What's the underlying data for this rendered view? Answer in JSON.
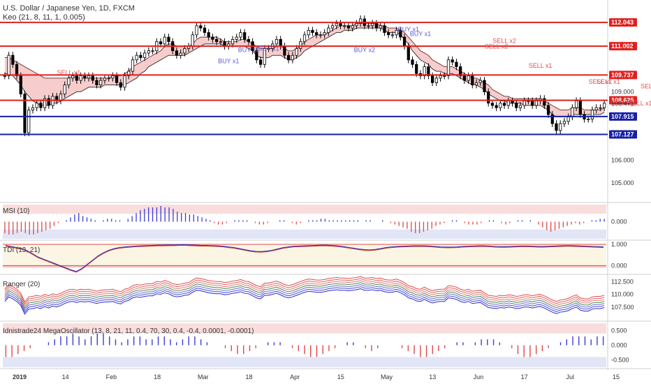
{
  "header": {
    "symbol": "U.S. Dollar / Japanese Yen, 1D, FXCM",
    "indicator": "Keo (21, 8, 11, 1, 0.005)"
  },
  "panes": {
    "msi": "MSI (10)",
    "tdi": "TDI (13, 21)",
    "ranger": "Ranger (20)",
    "mega": "Idnistrade24 MegaOscillator (13, 8, 21, 11, 0.4, 70, 30, 0.4, -0.4, 0.0001, -0.0001)"
  },
  "colors": {
    "resistance": "#e0201f",
    "support": "#1520a6",
    "bull_body": "#ffffff",
    "bear_body": "#000000",
    "band_red": "#f5c6c6",
    "band_green": "#c9e9c9",
    "band_blue": "#cdd4f0",
    "buy": "#5a5ad8",
    "sell": "#e05050"
  },
  "chart_data": [
    {
      "type": "candlestick",
      "title": "U.S. Dollar / Japanese Yen, 1D, FXCM",
      "ylim": [
        104.2,
        112.6
      ],
      "y_ticks": [
        105.0,
        106.0,
        107.0,
        108.0,
        109.0,
        110.0,
        111.0,
        112.0
      ],
      "x_tick_labels": [
        "2019",
        "14",
        "Feb",
        "18",
        "Mar",
        "18",
        "Apr",
        "15",
        "May",
        "13",
        "Jun",
        "17",
        "Jul",
        "15"
      ],
      "levels": [
        {
          "value": 112.043,
          "label": "112.043",
          "kind": "resistance"
        },
        {
          "value": 111.002,
          "label": "111.002",
          "kind": "resistance"
        },
        {
          "value": 109.737,
          "label": "109.737",
          "kind": "resistance"
        },
        {
          "value": 108.625,
          "label": "108.625",
          "kind": "resistance"
        },
        {
          "value": 107.915,
          "label": "107.915",
          "kind": "support"
        },
        {
          "value": 107.127,
          "label": "107.127",
          "kind": "support"
        }
      ],
      "last_price": {
        "value": 108.471,
        "label": "108.471"
      },
      "closes": [
        109.7,
        110.6,
        110.2,
        109.7,
        108.9,
        107.2,
        108.2,
        108.3,
        108.5,
        108.3,
        108.7,
        108.4,
        108.8,
        108.6,
        108.9,
        109.3,
        109.6,
        109.7,
        109.5,
        109.7,
        109.6,
        109.7,
        109.5,
        109.3,
        109.5,
        109.6,
        109.6,
        109.7,
        109.4,
        109.2,
        109.7,
        109.9,
        110.4,
        110.6,
        110.5,
        110.7,
        110.8,
        110.8,
        111.2,
        111.1,
        111.4,
        111.2,
        110.8,
        110.6,
        110.7,
        110.9,
        111.0,
        111.5,
        111.9,
        111.8,
        111.6,
        111.4,
        111.3,
        111.2,
        111.2,
        111.0,
        111.1,
        111.3,
        111.4,
        111.6,
        111.3,
        111.2,
        110.8,
        110.4,
        110.2,
        110.9,
        110.9,
        111.1,
        111.3,
        111.0,
        110.6,
        110.4,
        110.6,
        110.9,
        111.2,
        111.5,
        111.7,
        111.6,
        111.5,
        111.5,
        111.6,
        111.8,
        111.9,
        112.0,
        111.9,
        111.9,
        111.8,
        111.9,
        112.0,
        112.2,
        111.9,
        111.9,
        112.0,
        111.8,
        111.9,
        111.6,
        111.5,
        111.5,
        111.7,
        111.4,
        111.0,
        110.4,
        110.2,
        109.8,
        109.7,
        110.1,
        109.7,
        109.4,
        109.6,
        109.7,
        109.7,
        110.4,
        110.3,
        110.1,
        109.7,
        109.5,
        109.7,
        109.3,
        109.4,
        109.5,
        109.0,
        108.5,
        108.4,
        108.3,
        108.5,
        108.4,
        108.6,
        108.5,
        108.3,
        108.4,
        108.6,
        108.6,
        108.4,
        108.6,
        108.7,
        108.4,
        108.0,
        107.6,
        107.3,
        107.6,
        107.7,
        107.9,
        108.3,
        108.6,
        108.0,
        107.8,
        107.8,
        108.2,
        108.3,
        108.3,
        108.5
      ],
      "keo_upper": [
        110.5,
        110.5,
        110.4,
        110.3,
        110.2,
        110.1,
        110.0,
        109.9,
        109.8,
        109.7,
        109.6,
        109.6,
        109.6,
        109.6,
        109.6,
        109.6,
        109.6,
        109.7,
        109.6,
        109.6,
        109.6,
        109.6,
        109.6,
        109.6,
        109.6,
        109.6,
        109.6,
        109.7,
        109.7,
        109.7,
        109.8,
        109.9,
        110.1,
        110.2,
        110.3,
        110.4,
        110.5,
        110.6,
        110.7,
        110.8,
        111.0,
        111.1,
        111.1,
        111.0,
        111.0,
        111.0,
        111.0,
        111.1,
        111.3,
        111.4,
        111.4,
        111.4,
        111.4,
        111.4,
        111.3,
        111.2,
        111.2,
        111.2,
        111.2,
        111.3,
        111.3,
        111.2,
        111.1,
        111.0,
        110.9,
        110.9,
        110.9,
        110.9,
        111.0,
        111.0,
        110.9,
        110.8,
        110.8,
        110.9,
        111.0,
        111.2,
        111.3,
        111.4,
        111.5,
        111.5,
        111.5,
        111.6,
        111.7,
        111.8,
        111.9,
        111.9,
        111.9,
        111.9,
        112.0,
        112.0,
        112.0,
        112.0,
        112.0,
        112.0,
        111.9,
        111.9,
        111.8,
        111.8,
        111.8,
        111.7,
        111.6,
        111.4,
        111.2,
        111.0,
        110.8,
        110.7,
        110.6,
        110.4,
        110.3,
        110.2,
        110.1,
        110.1,
        110.1,
        110.0,
        109.9,
        109.8,
        109.7,
        109.6,
        109.6,
        109.5,
        109.4,
        109.3,
        109.1,
        109.0,
        108.9,
        108.8,
        108.8,
        108.7,
        108.7,
        108.7,
        108.7,
        108.7,
        108.7,
        108.7,
        108.7,
        108.6,
        108.5,
        108.4,
        108.3,
        108.2,
        108.2,
        108.2,
        108.3,
        108.3,
        108.3,
        108.2,
        108.2,
        108.2,
        108.2,
        108.2,
        108.3
      ],
      "keo_lower": [
        109.8,
        109.8,
        109.7,
        109.5,
        109.3,
        109.0,
        108.8,
        108.6,
        108.5,
        108.4,
        108.4,
        108.4,
        108.5,
        108.5,
        108.6,
        108.7,
        108.8,
        108.9,
        109.0,
        109.0,
        109.1,
        109.2,
        109.2,
        109.2,
        109.2,
        109.3,
        109.3,
        109.3,
        109.3,
        109.3,
        109.3,
        109.4,
        109.5,
        109.6,
        109.8,
        109.9,
        110.1,
        110.2,
        110.3,
        110.4,
        110.5,
        110.6,
        110.6,
        110.6,
        110.6,
        110.6,
        110.7,
        110.8,
        110.9,
        111.0,
        111.1,
        111.1,
        111.1,
        111.1,
        111.1,
        111.0,
        111.0,
        111.0,
        111.0,
        111.0,
        111.0,
        110.9,
        110.8,
        110.6,
        110.5,
        110.5,
        110.5,
        110.6,
        110.6,
        110.6,
        110.5,
        110.4,
        110.4,
        110.5,
        110.6,
        110.8,
        110.9,
        111.0,
        111.1,
        111.2,
        111.3,
        111.4,
        111.5,
        111.6,
        111.6,
        111.7,
        111.7,
        111.7,
        111.8,
        111.8,
        111.8,
        111.8,
        111.8,
        111.8,
        111.8,
        111.7,
        111.6,
        111.6,
        111.6,
        111.5,
        111.3,
        111.1,
        110.8,
        110.6,
        110.4,
        110.3,
        110.2,
        110.0,
        109.9,
        109.9,
        109.8,
        109.8,
        109.8,
        109.7,
        109.6,
        109.5,
        109.4,
        109.3,
        109.3,
        109.2,
        109.1,
        108.9,
        108.8,
        108.7,
        108.6,
        108.6,
        108.5,
        108.5,
        108.5,
        108.5,
        108.4,
        108.4,
        108.4,
        108.4,
        108.4,
        108.3,
        108.2,
        108.0,
        107.9,
        107.9,
        107.9,
        107.9,
        108.0,
        108.0,
        108.0,
        108.0,
        108.0,
        108.0,
        108.0,
        108.0,
        108.1
      ],
      "signals": [
        {
          "label": "SELL x1",
          "index": 16,
          "value": 109.75,
          "side": "sell"
        },
        {
          "label": "BUY x1",
          "index": 56,
          "value": 110.25,
          "side": "buy"
        },
        {
          "label": "BUY x1",
          "index": 61,
          "value": 110.75,
          "side": "buy"
        },
        {
          "label": "BUY x1",
          "index": 66,
          "value": 110.8,
          "side": "buy"
        },
        {
          "label": "BUY x2",
          "index": 90,
          "value": 110.75,
          "side": "buy"
        },
        {
          "label": "BUY x1",
          "index": 101,
          "value": 111.65,
          "side": "buy"
        },
        {
          "label": "BUY x1",
          "index": 104,
          "value": 111.45,
          "side": "buy"
        },
        {
          "label": "SELL x2",
          "index": 125,
          "value": 111.15,
          "side": "sell"
        },
        {
          "label": "SELL x2",
          "index": 123,
          "value": 110.9,
          "side": "sell"
        },
        {
          "label": "SELL x1",
          "index": 134,
          "value": 110.05,
          "side": "sell"
        },
        {
          "label": "SELL x1",
          "index": 149,
          "value": 109.35,
          "side": "sell"
        },
        {
          "label": "SELL x1",
          "index": 151,
          "value": 109.35,
          "side": "sell"
        },
        {
          "label": "SELL x2",
          "index": 162,
          "value": 109.15,
          "side": "sell"
        },
        {
          "label": "SELL x1",
          "index": 159,
          "value": 108.4,
          "side": "sell"
        }
      ]
    },
    {
      "type": "bar",
      "title": "MSI (10)",
      "ylim": [
        -1.2,
        1.2
      ],
      "y_ticks": [
        0.0
      ],
      "y_tick_labels": [
        "0.000"
      ],
      "values": [
        -0.8,
        -0.9,
        -0.9,
        -0.8,
        -0.7,
        -0.8,
        -0.9,
        -0.9,
        -0.8,
        -0.7,
        -0.6,
        -0.5,
        -0.3,
        -0.1,
        0.0,
        0.1,
        0.3,
        0.5,
        0.6,
        0.4,
        0.3,
        0.2,
        0.1,
        0.0,
        0.1,
        0.2,
        0.2,
        0.1,
        0.1,
        0.0,
        0.2,
        0.4,
        0.6,
        0.8,
        0.9,
        1.0,
        1.0,
        1.0,
        1.1,
        1.0,
        1.0,
        0.9,
        0.7,
        0.6,
        0.6,
        0.5,
        0.5,
        0.4,
        0.3,
        0.2,
        0.1,
        -0.1,
        -0.2,
        -0.2,
        -0.1,
        0.0,
        0.1,
        0.1,
        0.1,
        0.1,
        0.0,
        -0.1,
        -0.2,
        -0.2,
        -0.1,
        0.0,
        0.0,
        0.1,
        0.1,
        0.0,
        -0.1,
        -0.2,
        -0.1,
        0.0,
        0.1,
        0.1,
        0.1,
        0.2,
        0.2,
        0.1,
        0.1,
        0.1,
        0.1,
        0.1,
        0.1,
        0.1,
        0.1,
        0.0,
        0.1,
        0.1,
        0.0,
        0.0,
        0.1,
        0.0,
        -0.1,
        -0.2,
        -0.3,
        -0.4,
        -0.5,
        -0.7,
        -0.8,
        -0.8,
        -0.7,
        -0.6,
        -0.5,
        -0.3,
        -0.2,
        -0.1,
        0.0,
        0.1,
        0.1,
        0.0,
        -0.1,
        -0.2,
        -0.2,
        -0.2,
        -0.1,
        0.0,
        0.1,
        0.1,
        0.0,
        -0.1,
        -0.2,
        -0.1,
        0.0,
        0.1,
        0.1,
        0.0,
        0.1,
        0.0,
        -0.2,
        -0.4,
        -0.6,
        -0.7,
        -0.6,
        -0.5,
        -0.4,
        -0.3,
        -0.2,
        -0.1,
        -0.2,
        -0.1,
        0.0,
        0.1,
        0.1,
        0.2,
        0.2
      ]
    },
    {
      "type": "line",
      "title": "TDI (13, 21)",
      "ylim": [
        -0.35,
        1.1
      ],
      "y_ticks": [
        0.0,
        1.0
      ],
      "y_tick_labels": [
        "0.000",
        "1.000"
      ],
      "series": [
        {
          "values": [
            0.95,
            0.9,
            0.85,
            0.8,
            0.7,
            0.55,
            0.4,
            0.3,
            0.2,
            0.1,
            0.0,
            -0.1,
            -0.2,
            -0.28,
            -0.15,
            0.05,
            0.25,
            0.45,
            0.6,
            0.72,
            0.8,
            0.85,
            0.88,
            0.9,
            0.92,
            0.93,
            0.94,
            0.95,
            0.96,
            0.96,
            0.97,
            0.97,
            0.98,
            0.98,
            0.97,
            0.96,
            0.95,
            0.95,
            0.94,
            0.93,
            0.91,
            0.88,
            0.85,
            0.8,
            0.75,
            0.7,
            0.67,
            0.66,
            0.68,
            0.72,
            0.78,
            0.84,
            0.88,
            0.91,
            0.92,
            0.93,
            0.94,
            0.95,
            0.96,
            0.96,
            0.95,
            0.93,
            0.9,
            0.86,
            0.82,
            0.78,
            0.75,
            0.74,
            0.76,
            0.8,
            0.85,
            0.88,
            0.9,
            0.91,
            0.92,
            0.93,
            0.93,
            0.93,
            0.92,
            0.9,
            0.88,
            0.87,
            0.87,
            0.88,
            0.9,
            0.91,
            0.92,
            0.93,
            0.93,
            0.92,
            0.9,
            0.89,
            0.89,
            0.9,
            0.91,
            0.92,
            0.92,
            0.91,
            0.9,
            0.9,
            0.91,
            0.92,
            0.93,
            0.94,
            0.94,
            0.93,
            0.92,
            0.91,
            0.9,
            0.89,
            0.88
          ]
        }
      ]
    },
    {
      "type": "line",
      "title": "Ranger (20)",
      "ylim": [
        105.0,
        113.5
      ],
      "y_ticks": [
        107.5,
        110.0,
        112.5
      ],
      "y_tick_labels": [
        "107.500",
        "110.000",
        "112.500"
      ]
    },
    {
      "type": "bar",
      "title": "Idnistrade24 MegaOscillator (13, 8, 21, 11, 0.4, 70, 30, 0.4, -0.4, 0.0001, -0.0001)",
      "ylim": [
        -0.75,
        0.75
      ],
      "y_ticks": [
        -0.5,
        0.0,
        0.5
      ],
      "y_tick_labels": [
        "-0.500",
        "0.000",
        "0.500"
      ],
      "values": [
        -0.4,
        -0.4,
        -0.3,
        -0.2,
        -0.1,
        0.0,
        0.0,
        0.1,
        0.2,
        0.3,
        0.3,
        0.4,
        0.3,
        0.2,
        0.3,
        0.4,
        0.4,
        0.3,
        0.2,
        0.1,
        0.2,
        0.3,
        0.3,
        0.2,
        0.2,
        0.3,
        0.3,
        0.2,
        0.1,
        0.2,
        0.3,
        0.3,
        0.2,
        0.1,
        0.0,
        0.0,
        -0.1,
        -0.2,
        -0.3,
        -0.3,
        -0.2,
        -0.1,
        0.0,
        0.1,
        0.1,
        0.1,
        0.0,
        -0.1,
        -0.2,
        -0.3,
        -0.4,
        -0.4,
        -0.3,
        -0.2,
        -0.1,
        0.0,
        0.1,
        0.1,
        0.0,
        -0.1,
        -0.2,
        -0.1,
        0.0,
        0.0,
        0.0,
        -0.1,
        -0.2,
        -0.3,
        -0.4,
        -0.4,
        -0.3,
        -0.2,
        -0.1,
        0.0,
        0.1,
        0.1,
        0.0,
        0.1,
        0.2,
        0.2,
        0.2,
        0.1,
        0.0,
        -0.1,
        -0.3,
        -0.4,
        -0.4,
        -0.3,
        -0.2,
        -0.1,
        0.0,
        0.1,
        0.2,
        0.3,
        0.3,
        0.3,
        0.2,
        0.3,
        0.3
      ]
    }
  ]
}
